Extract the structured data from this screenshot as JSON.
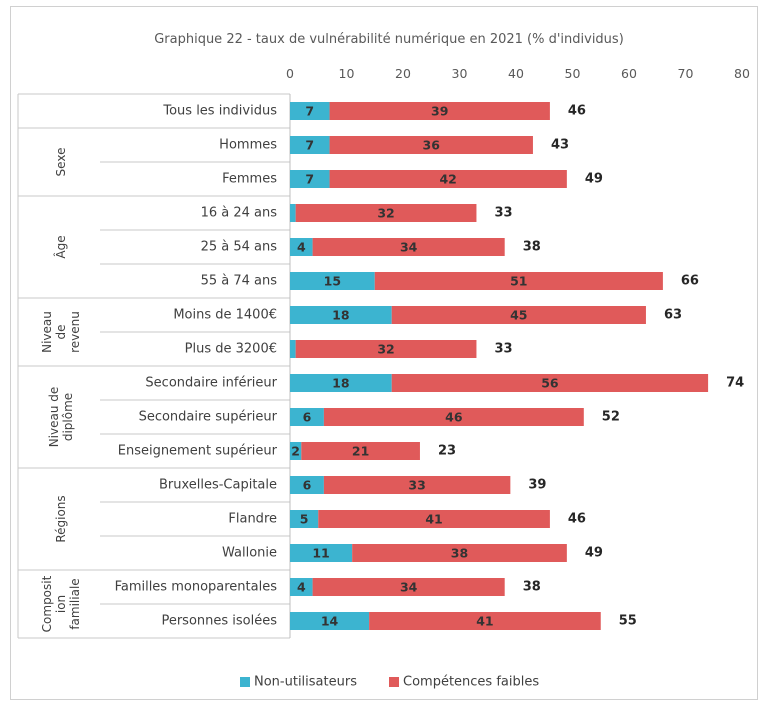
{
  "chart_data": {
    "type": "bar",
    "orientation": "horizontal",
    "stacked": true,
    "title": "Graphique 22 - taux de vulnérabilité numérique en 2021 (% d'individus)",
    "xlim": [
      0,
      80
    ],
    "xticks": [
      "0",
      "10",
      "20",
      "30",
      "40",
      "50",
      "60",
      "70",
      "80"
    ],
    "legend_position": "bottom",
    "colors": {
      "non_utilisateurs": "#3cb4d0",
      "competences_faibles": "#e05a5a"
    },
    "groups": [
      {
        "label": "",
        "lines": [],
        "rows": [
          0
        ]
      },
      {
        "label": "Sexe",
        "lines": [
          "Sexe"
        ],
        "rows": [
          1,
          2
        ]
      },
      {
        "label": "Âge",
        "lines": [
          "Âge"
        ],
        "rows": [
          3,
          4,
          5
        ]
      },
      {
        "label": "Niveau de revenu",
        "lines": [
          "Niveau",
          "de",
          "revenu"
        ],
        "rows": [
          6,
          7
        ]
      },
      {
        "label": "Niveau de diplôme",
        "lines": [
          "Niveau de",
          "diplôme"
        ],
        "rows": [
          8,
          9,
          10
        ]
      },
      {
        "label": "Régions",
        "lines": [
          "Régions"
        ],
        "rows": [
          11,
          12,
          13
        ]
      },
      {
        "label": "Composition familiale",
        "lines": [
          "Composit",
          "ion",
          "familiale"
        ],
        "rows": [
          14,
          15
        ]
      }
    ],
    "categories": [
      "Tous les individus",
      "Hommes",
      "Femmes",
      "16 à 24 ans",
      "25 à 54 ans",
      "55 à 74 ans",
      "Moins de 1400€",
      "Plus de 3200€",
      "Secondaire inférieur",
      "Secondaire supérieur",
      "Enseignement supérieur",
      "Bruxelles-Capitale",
      "Flandre",
      "Wallonie",
      "Familles monoparentales",
      "Personnes isolées"
    ],
    "series": [
      {
        "name": "Non-utilisateurs",
        "values": [
          7,
          7,
          7,
          1,
          4,
          15,
          18,
          1,
          18,
          6,
          2,
          6,
          5,
          11,
          4,
          14
        ],
        "labels": [
          "7",
          "7",
          "7",
          "",
          "4",
          "15",
          "18",
          "",
          "18",
          "6",
          "2",
          "6",
          "5",
          "11",
          "4",
          "14"
        ]
      },
      {
        "name": "Compétences faibles",
        "values": [
          39,
          36,
          42,
          32,
          34,
          51,
          45,
          32,
          56,
          46,
          21,
          33,
          41,
          38,
          34,
          41
        ],
        "labels": [
          "39",
          "36",
          "42",
          "32",
          "34",
          "51",
          "45",
          "32",
          "56",
          "46",
          "21",
          "33",
          "41",
          "38",
          "34",
          "41"
        ]
      }
    ],
    "totals": [
      "46",
      "43",
      "49",
      "33",
      "38",
      "66",
      "63",
      "33",
      "74",
      "52",
      "23",
      "39",
      "46",
      "49",
      "38",
      "55"
    ]
  }
}
